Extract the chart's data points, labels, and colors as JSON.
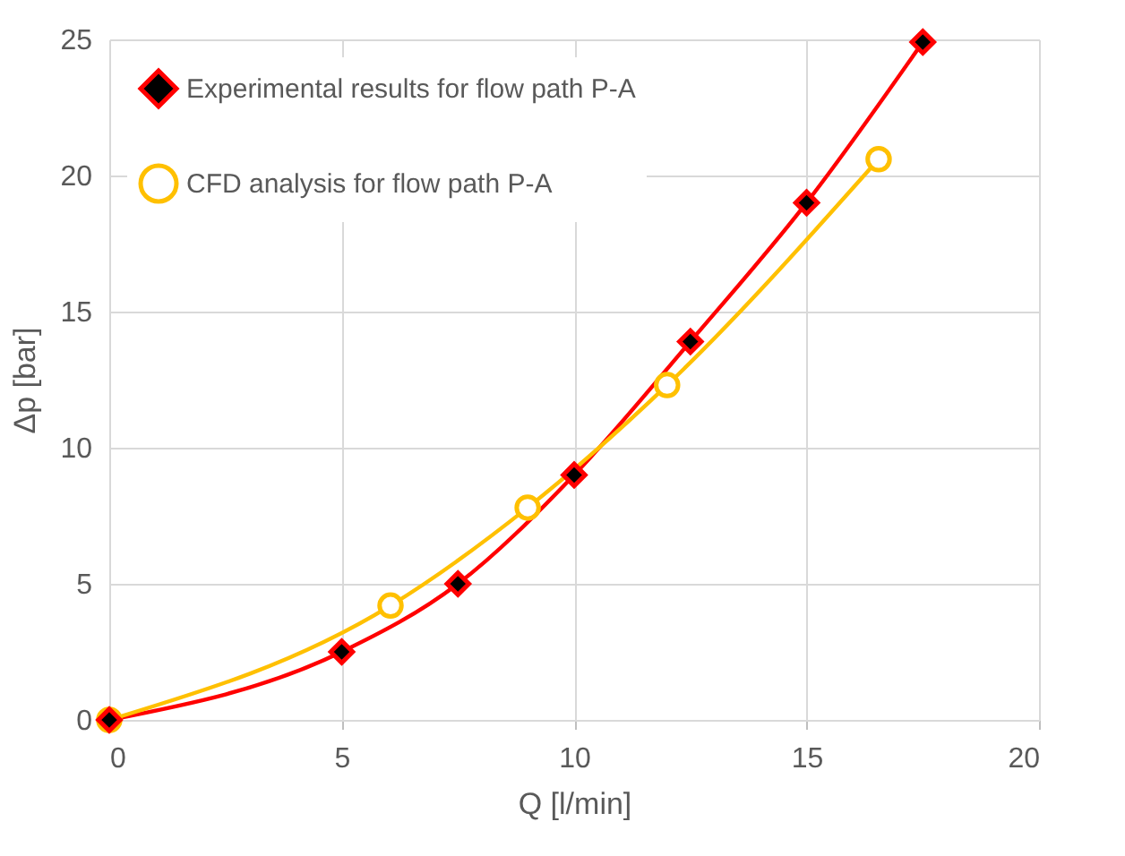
{
  "chart_data": {
    "type": "line",
    "xlabel": "Q [l/min]",
    "ylabel": "Δp [bar]",
    "xlim": [
      0,
      20
    ],
    "xticks": [
      0,
      5,
      10,
      15,
      20
    ],
    "ylim": [
      0,
      25
    ],
    "yticks": [
      0,
      5,
      10,
      15,
      20,
      25
    ],
    "grid": true,
    "legend": "top left",
    "series": [
      {
        "name": "Experimental results for flow path P-A",
        "color": "#ff0000",
        "marker": "diamond",
        "x": [
          0,
          5,
          7.5,
          10,
          12.5,
          15,
          17.5
        ],
        "values": [
          0,
          2.5,
          5,
          9,
          13.9,
          19,
          24.9
        ]
      },
      {
        "name": "CFD analysis for flow path P-A",
        "color": "#ffc000",
        "marker": "circle",
        "x": [
          0,
          6.05,
          9,
          12,
          16.55
        ],
        "values": [
          0,
          4.2,
          7.8,
          12.3,
          20.6
        ]
      }
    ]
  }
}
